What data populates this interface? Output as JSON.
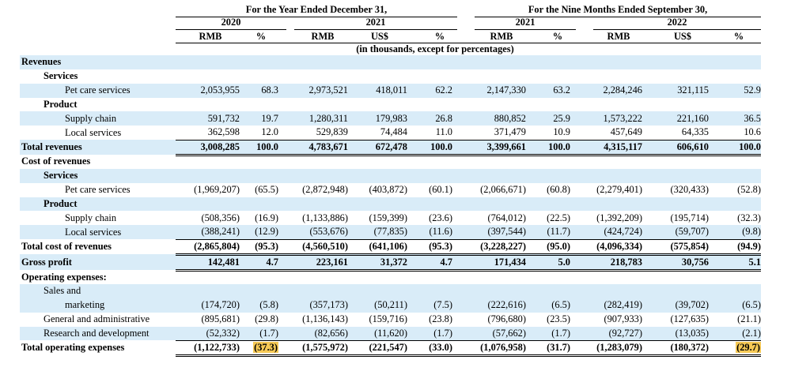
{
  "header": {
    "group_year": "For the Year Ended December 31,",
    "group_nine": "For the Nine Months Ended September 30,",
    "year_2020": "2020",
    "year_2021a": "2021",
    "year_2021b": "2021",
    "year_2022": "2022",
    "cols": [
      "RMB",
      "%",
      "RMB",
      "US$",
      "%",
      "RMB",
      "%",
      "RMB",
      "US$",
      "%"
    ],
    "note": "(in thousands, except for percentages)"
  },
  "rows": [
    {
      "label": "Revenues",
      "indent": 0,
      "bold": true,
      "shade": true,
      "values": []
    },
    {
      "label": "Services",
      "indent": 1,
      "bold": true,
      "shade": false,
      "values": []
    },
    {
      "label": "Pet care services",
      "indent": 2,
      "bold": false,
      "shade": true,
      "values": [
        "2,053,955",
        "68.3",
        "2,973,521",
        "418,011",
        "62.2",
        "2,147,330",
        "63.2",
        "2,284,246",
        "321,115",
        "52.9"
      ]
    },
    {
      "label": "Product",
      "indent": 1,
      "bold": true,
      "shade": false,
      "values": []
    },
    {
      "label": "Supply chain",
      "indent": 2,
      "bold": false,
      "shade": true,
      "values": [
        "591,732",
        "19.7",
        "1,280,311",
        "179,983",
        "26.8",
        "880,852",
        "25.9",
        "1,573,222",
        "221,160",
        "36.5"
      ]
    },
    {
      "label": "Local services",
      "indent": 2,
      "bold": false,
      "shade": false,
      "underline": true,
      "values": [
        "362,598",
        "12.0",
        "529,839",
        "74,484",
        "11.0",
        "371,479",
        "10.9",
        "457,649",
        "64,335",
        "10.6"
      ]
    },
    {
      "label": "Total revenues",
      "indent": 0,
      "bold": true,
      "shade": true,
      "double": true,
      "values": [
        "3,008,285",
        "100.0",
        "4,783,671",
        "672,478",
        "100.0",
        "3,399,661",
        "100.0",
        "4,315,117",
        "606,610",
        "100.0"
      ]
    },
    {
      "label": "Cost of revenues",
      "indent": 0,
      "bold": true,
      "shade": false,
      "values": []
    },
    {
      "label": "Services",
      "indent": 1,
      "bold": true,
      "shade": true,
      "values": []
    },
    {
      "label": "Pet care services",
      "indent": 2,
      "bold": false,
      "shade": false,
      "values": [
        "(1,969,207)",
        "(65.5)",
        "(2,872,948)",
        "(403,872)",
        "(60.1)",
        "(2,066,671)",
        "(60.8)",
        "(2,279,401)",
        "(320,433)",
        "(52.8)"
      ]
    },
    {
      "label": "Product",
      "indent": 1,
      "bold": true,
      "shade": true,
      "values": []
    },
    {
      "label": "Supply chain",
      "indent": 2,
      "bold": false,
      "shade": false,
      "values": [
        "(508,356)",
        "(16.9)",
        "(1,133,886)",
        "(159,399)",
        "(23.6)",
        "(764,012)",
        "(22.5)",
        "(1,392,209)",
        "(195,714)",
        "(32.3)"
      ]
    },
    {
      "label": "Local services",
      "indent": 2,
      "bold": false,
      "shade": true,
      "underline": true,
      "values": [
        "(388,241)",
        "(12.9)",
        "(553,676)",
        "(77,835)",
        "(11.6)",
        "(397,544)",
        "(11.7)",
        "(424,724)",
        "(59,707)",
        "(9.8)"
      ]
    },
    {
      "label": "Total cost of revenues",
      "indent": 0,
      "bold": true,
      "shade": false,
      "double": true,
      "values": [
        "(2,865,804)",
        "(95.3)",
        "(4,560,510)",
        "(641,106)",
        "(95.3)",
        "(3,228,227)",
        "(95.0)",
        "(4,096,334)",
        "(575,854)",
        "(94.9)"
      ]
    },
    {
      "label": "Gross profit",
      "indent": 0,
      "bold": true,
      "shade": true,
      "double": true,
      "values": [
        "142,481",
        "4.7",
        "223,161",
        "31,372",
        "4.7",
        "171,434",
        "5.0",
        "218,783",
        "30,756",
        "5.1"
      ]
    },
    {
      "label": "Operating expenses:",
      "indent": 0,
      "bold": true,
      "shade": false,
      "values": []
    },
    {
      "label": "Sales and",
      "indent": 1,
      "bold": false,
      "shade": true,
      "values": []
    },
    {
      "label": "marketing",
      "indent": 2,
      "bold": false,
      "shade": true,
      "values": [
        "(174,720)",
        "(5.8)",
        "(357,173)",
        "(50,211)",
        "(7.5)",
        "(222,616)",
        "(6.5)",
        "(282,419)",
        "(39,702)",
        "(6.5)"
      ]
    },
    {
      "label": "General and administrative",
      "indent": 1,
      "bold": false,
      "shade": false,
      "values": [
        "(895,681)",
        "(29.8)",
        "(1,136,143)",
        "(159,716)",
        "(23.8)",
        "(796,680)",
        "(23.5)",
        "(907,933)",
        "(127,635)",
        "(21.1)"
      ]
    },
    {
      "label": "Research and development",
      "indent": 1,
      "bold": false,
      "shade": true,
      "underline": true,
      "values": [
        "(52,332)",
        "(1.7)",
        "(82,656)",
        "(11,620)",
        "(1.7)",
        "(57,662)",
        "(1.7)",
        "(92,727)",
        "(13,035)",
        "(2.1)"
      ]
    },
    {
      "label": "Total operating expenses",
      "indent": 0,
      "bold": true,
      "shade": false,
      "double": true,
      "values": [
        "(1,122,733)",
        "(37.3)",
        "(1,575,972)",
        "(221,547)",
        "(33.0)",
        "(1,076,958)",
        "(31.7)",
        "(1,283,079)",
        "(180,372)",
        "(29.7)"
      ],
      "highlight": [
        1,
        9
      ]
    }
  ],
  "colors": {
    "shade": "#d9ecf8",
    "highlight": "#f6c955"
  }
}
